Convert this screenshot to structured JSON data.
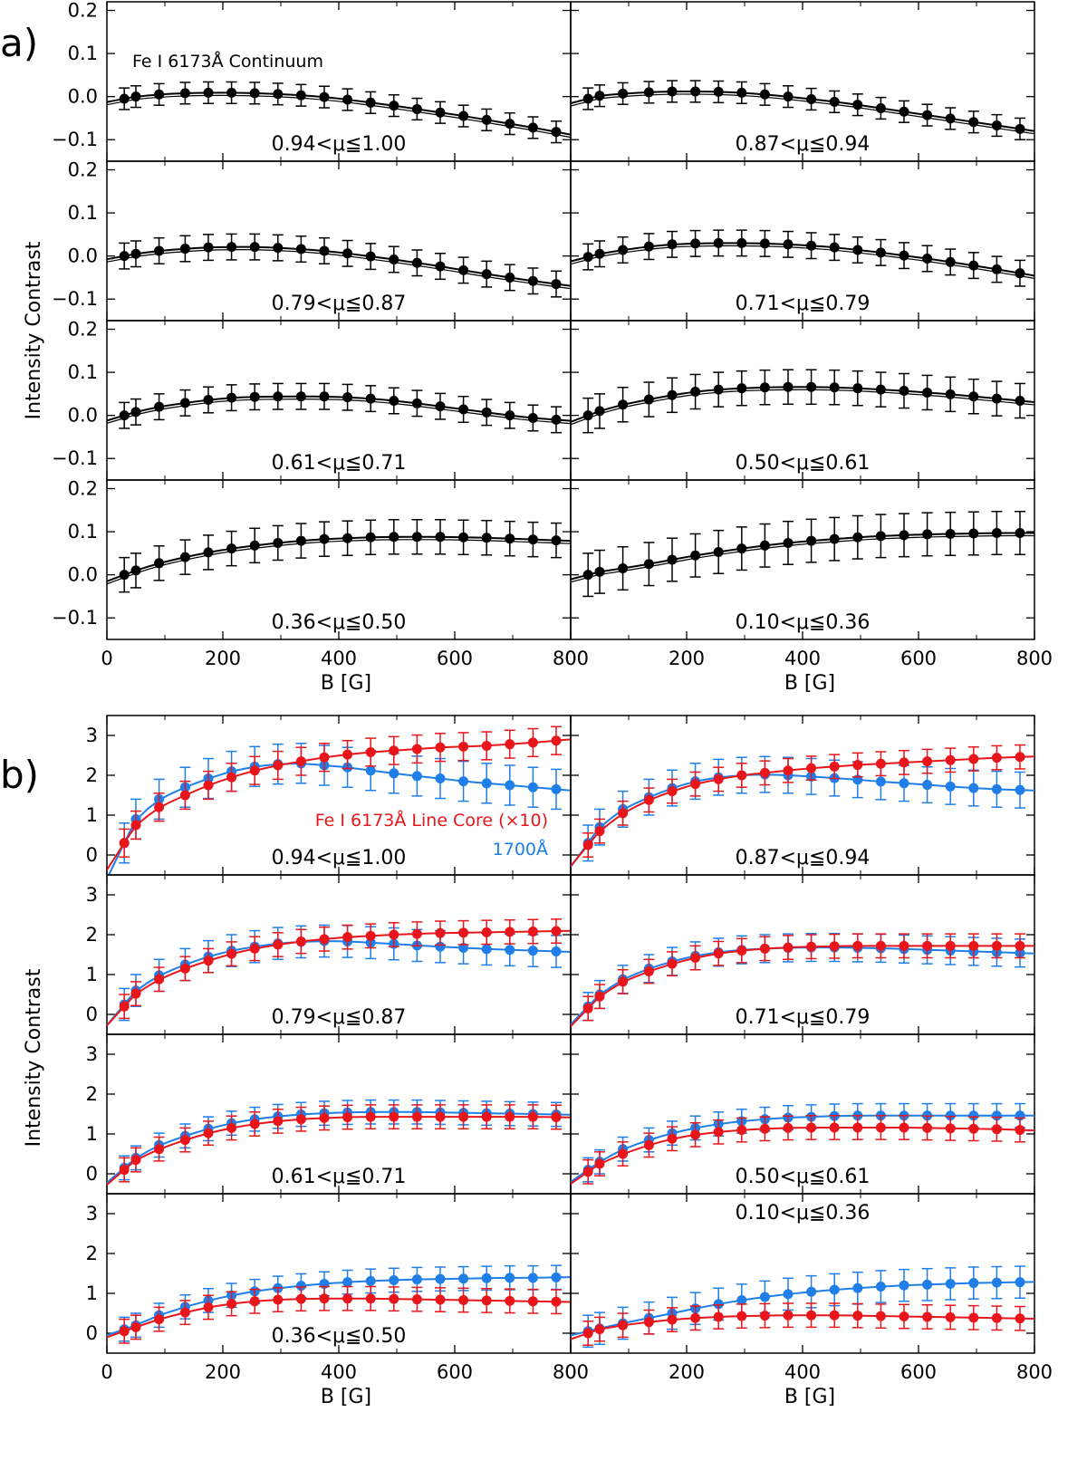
{
  "figure": {
    "panel_a_label": "a)",
    "panel_b_label": "b)",
    "colors": {
      "continuum": "#000000",
      "line_core": "#e8161b",
      "uv_1700": "#1f7ee8"
    }
  },
  "chart_data": [
    {
      "type": "scatter",
      "id": "panel-a",
      "title": "Fe I 6173Å Continuum",
      "xlabel": "B [G]",
      "ylabel": "Intensity Contrast",
      "xlim": [
        0,
        800
      ],
      "ylim": [
        -0.15,
        0.22
      ],
      "x_ticks": [
        "0",
        "200",
        "400",
        "600",
        "800"
      ],
      "y_ticks": [
        "−0.1",
        "0.0",
        "0.1",
        "0.2"
      ],
      "y_tick_values": [
        -0.1,
        0.0,
        0.1,
        0.2
      ],
      "x": [
        30,
        50,
        90,
        135,
        175,
        215,
        255,
        295,
        335,
        375,
        415,
        455,
        495,
        535,
        575,
        615,
        655,
        695,
        735,
        775
      ],
      "subplots": [
        {
          "mu_range": "0.94<μ≦1.00",
          "err": 0.025,
          "values": [
            -0.005,
            0.0,
            0.005,
            0.008,
            0.009,
            0.009,
            0.008,
            0.006,
            0.003,
            -0.001,
            -0.007,
            -0.014,
            -0.021,
            -0.029,
            -0.037,
            -0.045,
            -0.054,
            -0.063,
            -0.072,
            -0.082
          ]
        },
        {
          "mu_range": "0.87<μ≦0.94",
          "err": 0.025,
          "values": [
            -0.005,
            0.002,
            0.007,
            0.01,
            0.012,
            0.012,
            0.011,
            0.009,
            0.005,
            0.0,
            -0.006,
            -0.012,
            -0.019,
            -0.027,
            -0.035,
            -0.043,
            -0.051,
            -0.059,
            -0.067,
            -0.075
          ]
        },
        {
          "mu_range": "0.79<μ≦0.87",
          "err": 0.03,
          "values": [
            0.0,
            0.005,
            0.012,
            0.017,
            0.02,
            0.021,
            0.021,
            0.019,
            0.016,
            0.012,
            0.006,
            -0.001,
            -0.008,
            -0.016,
            -0.024,
            -0.033,
            -0.042,
            -0.05,
            -0.058,
            -0.065
          ]
        },
        {
          "mu_range": "0.71<μ≦0.79",
          "err": 0.03,
          "values": [
            -0.002,
            0.005,
            0.014,
            0.022,
            0.027,
            0.029,
            0.03,
            0.03,
            0.029,
            0.027,
            0.024,
            0.02,
            0.014,
            0.008,
            0.001,
            -0.006,
            -0.014,
            -0.022,
            -0.031,
            -0.04
          ]
        },
        {
          "mu_range": "0.61<μ≦0.71",
          "err": 0.03,
          "values": [
            0.0,
            0.008,
            0.02,
            0.029,
            0.036,
            0.041,
            0.043,
            0.044,
            0.044,
            0.044,
            0.042,
            0.039,
            0.034,
            0.028,
            0.021,
            0.014,
            0.007,
            0.0,
            -0.006,
            -0.01
          ]
        },
        {
          "mu_range": "0.50<μ≦0.61",
          "err": 0.04,
          "values": [
            0.0,
            0.01,
            0.025,
            0.037,
            0.047,
            0.055,
            0.06,
            0.063,
            0.065,
            0.066,
            0.066,
            0.065,
            0.063,
            0.06,
            0.057,
            0.053,
            0.049,
            0.044,
            0.039,
            0.034
          ]
        },
        {
          "mu_range": "0.36<μ≦0.50",
          "err": 0.04,
          "values": [
            0.0,
            0.01,
            0.027,
            0.041,
            0.052,
            0.061,
            0.068,
            0.074,
            0.079,
            0.083,
            0.085,
            0.087,
            0.088,
            0.088,
            0.088,
            0.087,
            0.086,
            0.084,
            0.082,
            0.08
          ]
        },
        {
          "mu_range": "0.10<μ≦0.36",
          "err": 0.05,
          "values": [
            0.0,
            0.007,
            0.015,
            0.025,
            0.035,
            0.045,
            0.053,
            0.061,
            0.068,
            0.074,
            0.079,
            0.083,
            0.087,
            0.09,
            0.092,
            0.094,
            0.095,
            0.096,
            0.097,
            0.097
          ]
        }
      ]
    },
    {
      "type": "scatter",
      "id": "panel-b",
      "xlabel": "B [G]",
      "ylabel": "Intensity Contrast",
      "xlim": [
        0,
        800
      ],
      "ylim": [
        -0.5,
        3.5
      ],
      "x_ticks": [
        "0",
        "200",
        "400",
        "600",
        "800"
      ],
      "y_ticks": [
        "0",
        "1",
        "2",
        "3"
      ],
      "y_tick_values": [
        0,
        1,
        2,
        3
      ],
      "x": [
        30,
        50,
        90,
        135,
        175,
        215,
        255,
        295,
        335,
        375,
        415,
        455,
        495,
        535,
        575,
        615,
        655,
        695,
        735,
        775
      ],
      "legend": [
        "Fe I 6173Å Line Core (×10)",
        "1700Å"
      ],
      "series_names": [
        "Fe I 6173Å Line Core (×10)",
        "1700Å"
      ],
      "subplots": [
        {
          "mu_range": "0.94<μ≦1.00",
          "red": {
            "err": 0.35,
            "values": [
              0.3,
              0.75,
              1.2,
              1.5,
              1.75,
              1.95,
              2.12,
              2.25,
              2.35,
              2.45,
              2.52,
              2.58,
              2.62,
              2.66,
              2.7,
              2.72,
              2.74,
              2.78,
              2.82,
              2.87
            ]
          },
          "blue": {
            "err": 0.5,
            "values": [
              0.3,
              0.9,
              1.4,
              1.7,
              1.92,
              2.1,
              2.22,
              2.28,
              2.3,
              2.25,
              2.2,
              2.12,
              2.05,
              1.98,
              1.92,
              1.85,
              1.8,
              1.75,
              1.7,
              1.65
            ]
          }
        },
        {
          "mu_range": "0.87<μ≦0.94",
          "red": {
            "err": 0.3,
            "values": [
              0.25,
              0.6,
              1.05,
              1.38,
              1.6,
              1.78,
              1.9,
              2.0,
              2.06,
              2.12,
              2.18,
              2.22,
              2.26,
              2.29,
              2.32,
              2.35,
              2.38,
              2.41,
              2.44,
              2.46
            ]
          },
          "blue": {
            "err": 0.45,
            "values": [
              0.3,
              0.7,
              1.15,
              1.45,
              1.68,
              1.85,
              1.95,
              2.0,
              2.02,
              2.0,
              1.97,
              1.93,
              1.89,
              1.84,
              1.8,
              1.76,
              1.72,
              1.68,
              1.65,
              1.63
            ]
          }
        },
        {
          "mu_range": "0.79<μ≦0.87",
          "red": {
            "err": 0.3,
            "values": [
              0.2,
              0.52,
              0.88,
              1.15,
              1.35,
              1.52,
              1.65,
              1.75,
              1.83,
              1.89,
              1.94,
              1.97,
              2.0,
              2.02,
              2.04,
              2.05,
              2.06,
              2.07,
              2.08,
              2.09
            ]
          },
          "blue": {
            "err": 0.4,
            "values": [
              0.25,
              0.6,
              0.98,
              1.25,
              1.45,
              1.6,
              1.7,
              1.78,
              1.82,
              1.84,
              1.83,
              1.8,
              1.77,
              1.73,
              1.7,
              1.67,
              1.64,
              1.62,
              1.6,
              1.58
            ]
          }
        },
        {
          "mu_range": "0.71<μ≦0.79",
          "red": {
            "err": 0.3,
            "values": [
              0.15,
              0.45,
              0.82,
              1.08,
              1.27,
              1.42,
              1.53,
              1.6,
              1.65,
              1.68,
              1.7,
              1.71,
              1.72,
              1.72,
              1.72,
              1.72,
              1.72,
              1.72,
              1.72,
              1.72
            ]
          },
          "blue": {
            "err": 0.35,
            "values": [
              0.2,
              0.5,
              0.88,
              1.15,
              1.33,
              1.47,
              1.56,
              1.62,
              1.65,
              1.67,
              1.68,
              1.68,
              1.67,
              1.66,
              1.64,
              1.62,
              1.6,
              1.58,
              1.56,
              1.54
            ]
          }
        },
        {
          "mu_range": "0.61<μ≦0.71",
          "red": {
            "err": 0.3,
            "values": [
              0.1,
              0.35,
              0.62,
              0.85,
              1.02,
              1.15,
              1.25,
              1.32,
              1.37,
              1.4,
              1.42,
              1.43,
              1.43,
              1.43,
              1.43,
              1.43,
              1.43,
              1.43,
              1.43,
              1.42
            ]
          },
          "blue": {
            "err": 0.3,
            "values": [
              0.15,
              0.4,
              0.72,
              0.95,
              1.13,
              1.27,
              1.37,
              1.44,
              1.49,
              1.52,
              1.54,
              1.55,
              1.55,
              1.55,
              1.54,
              1.53,
              1.52,
              1.51,
              1.5,
              1.49
            ]
          }
        },
        {
          "mu_range": "0.50<μ≦0.61",
          "red": {
            "err": 0.3,
            "values": [
              0.05,
              0.25,
              0.5,
              0.72,
              0.88,
              0.98,
              1.05,
              1.1,
              1.13,
              1.15,
              1.16,
              1.16,
              1.16,
              1.16,
              1.16,
              1.15,
              1.14,
              1.13,
              1.12,
              1.1
            ]
          },
          "blue": {
            "err": 0.3,
            "values": [
              0.1,
              0.3,
              0.62,
              0.85,
              1.02,
              1.15,
              1.25,
              1.32,
              1.37,
              1.41,
              1.43,
              1.45,
              1.46,
              1.46,
              1.46,
              1.46,
              1.46,
              1.46,
              1.46,
              1.46
            ]
          }
        },
        {
          "mu_range": "0.36<μ≦0.50",
          "red": {
            "err": 0.3,
            "values": [
              0.05,
              0.15,
              0.35,
              0.52,
              0.65,
              0.74,
              0.8,
              0.84,
              0.86,
              0.87,
              0.87,
              0.87,
              0.86,
              0.85,
              0.84,
              0.83,
              0.82,
              0.81,
              0.8,
              0.79
            ]
          },
          "blue": {
            "err": 0.3,
            "values": [
              0.1,
              0.2,
              0.45,
              0.66,
              0.82,
              0.95,
              1.05,
              1.13,
              1.19,
              1.24,
              1.28,
              1.31,
              1.33,
              1.35,
              1.36,
              1.37,
              1.38,
              1.39,
              1.39,
              1.4
            ]
          }
        },
        {
          "mu_range": "0.10<μ≦0.36",
          "red": {
            "err": 0.3,
            "values": [
              0.0,
              0.1,
              0.2,
              0.28,
              0.34,
              0.38,
              0.41,
              0.43,
              0.44,
              0.45,
              0.45,
              0.45,
              0.44,
              0.43,
              0.42,
              0.41,
              0.4,
              0.39,
              0.38,
              0.37
            ]
          },
          "blue": {
            "err": 0.4,
            "values": [
              0.05,
              0.12,
              0.25,
              0.38,
              0.5,
              0.62,
              0.73,
              0.83,
              0.91,
              0.98,
              1.04,
              1.09,
              1.13,
              1.17,
              1.2,
              1.22,
              1.24,
              1.26,
              1.27,
              1.28
            ]
          }
        }
      ]
    }
  ]
}
